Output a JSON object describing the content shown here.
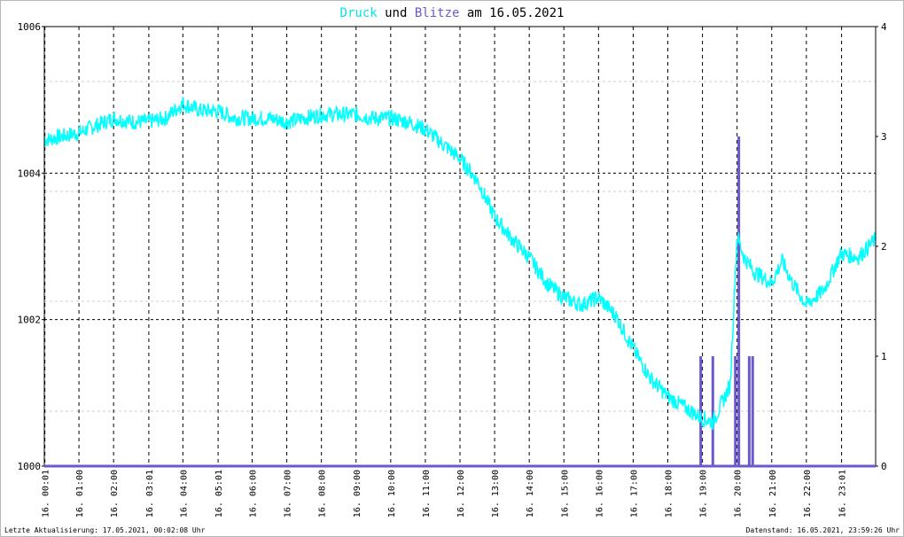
{
  "header": {
    "title_parts": [
      {
        "text": "Druck",
        "color": "#00e5e5"
      },
      {
        "text": " und ",
        "color": "#000000"
      },
      {
        "text": "Blitze",
        "color": "#6a5acd"
      },
      {
        "text": " am 16.05.2021",
        "color": "#000000"
      }
    ]
  },
  "footer": {
    "left": "Letzte Aktualisierung: 17.05.2021, 00:02:08 Uhr",
    "right": "Datenstand: 16.05.2021, 23:59:26 Uhr"
  },
  "colors": {
    "pressure": "#00ffff",
    "lightning": "#6a5acd",
    "grid": "#000000",
    "minor_grid": "#cccccc",
    "axis": "#000000"
  },
  "chart_data": {
    "type": "line",
    "title": "Druck und Blitze am 16.05.2021",
    "x_ticks": [
      "16. 00:01",
      "16. 01:00",
      "16. 02:00",
      "16. 03:01",
      "16. 04:00",
      "16. 05:01",
      "16. 06:00",
      "16. 07:00",
      "16. 08:00",
      "16. 09:00",
      "16. 10:00",
      "16. 11:00",
      "16. 12:00",
      "16. 13:00",
      "16. 14:00",
      "16. 15:00",
      "16. 16:00",
      "16. 17:00",
      "16. 18:00",
      "16. 19:00",
      "16. 20:00",
      "16. 21:00",
      "16. 22:00",
      "16. 23:01"
    ],
    "x_tick_hours": [
      0.017,
      1,
      2,
      3.017,
      4,
      5.017,
      6,
      7,
      8,
      9,
      10,
      11,
      12,
      13,
      14,
      15,
      16,
      17,
      18,
      19,
      20,
      21,
      22,
      23.017
    ],
    "xlim": [
      0,
      24
    ],
    "y_left": {
      "range": [
        1000,
        1006
      ],
      "ticks": [
        1000,
        1002,
        1004,
        1006
      ]
    },
    "y_right": {
      "range": [
        0,
        4
      ],
      "ticks": [
        0,
        1,
        2,
        3,
        4
      ]
    },
    "grid": true,
    "series": [
      {
        "name": "Druck",
        "axis": "left",
        "x_hours": [
          0,
          0.5,
          1,
          1.5,
          2,
          2.5,
          3,
          3.5,
          4,
          4.5,
          5,
          5.5,
          6,
          6.5,
          7,
          7.5,
          8,
          8.5,
          9,
          9.5,
          10,
          10.5,
          11,
          11.5,
          12,
          12.5,
          13,
          13.5,
          14,
          14.5,
          15,
          15.5,
          16,
          16.5,
          17,
          17.5,
          18,
          18.5,
          19,
          19.3,
          19.6,
          19.8,
          20,
          20.2,
          20.5,
          21,
          21.3,
          21.6,
          22,
          22.5,
          23,
          23.5,
          24
        ],
        "values": [
          1004.45,
          1004.5,
          1004.55,
          1004.65,
          1004.75,
          1004.7,
          1004.7,
          1004.75,
          1004.95,
          1004.85,
          1004.85,
          1004.75,
          1004.75,
          1004.75,
          1004.7,
          1004.75,
          1004.8,
          1004.8,
          1004.8,
          1004.75,
          1004.75,
          1004.7,
          1004.6,
          1004.4,
          1004.2,
          1003.9,
          1003.4,
          1003.1,
          1002.85,
          1002.5,
          1002.3,
          1002.2,
          1002.3,
          1002.05,
          1001.6,
          1001.2,
          1000.95,
          1000.8,
          1000.65,
          1000.6,
          1000.9,
          1001.1,
          1003.15,
          1002.85,
          1002.65,
          1002.5,
          1002.8,
          1002.5,
          1002.2,
          1002.4,
          1002.9,
          1002.85,
          1003.1
        ]
      },
      {
        "name": "Blitze",
        "axis": "right",
        "type": "bar",
        "x_hours": [
          18.95,
          19.3,
          19.95,
          20.05,
          20.35,
          20.45
        ],
        "values": [
          1,
          1,
          1,
          3,
          1,
          1
        ]
      }
    ]
  }
}
